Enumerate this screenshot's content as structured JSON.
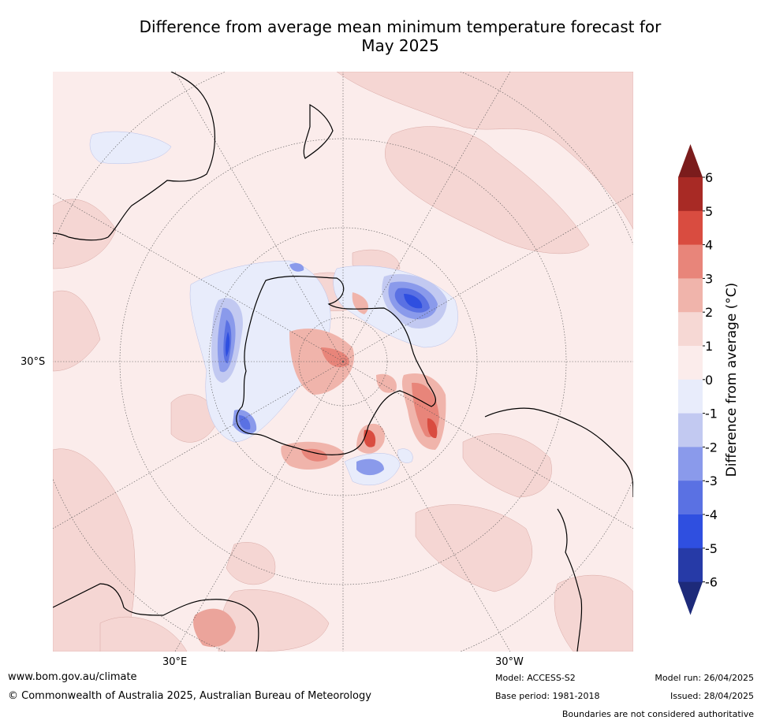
{
  "title_line1": "Difference from average mean minimum temperature forecast for",
  "title_line2": "May 2025",
  "map": {
    "lat_label": "30°S",
    "lon_labels": [
      "30°E",
      "30°W"
    ]
  },
  "colorbar": {
    "label": "Difference from average (°C)",
    "ticks": [
      "6",
      "5",
      "4",
      "3",
      "2",
      "1",
      "0",
      "-1",
      "-2",
      "-3",
      "-4",
      "-5",
      "-6"
    ],
    "colors": [
      "#7b1c1c",
      "#a82a25",
      "#d94c40",
      "#e8857a",
      "#f0b4ab",
      "#f6d8d4",
      "#fbeceb",
      "#e8ecfb",
      "#c2c9f1",
      "#8a9aeb",
      "#5a71e3",
      "#2f4fe0",
      "#263aa7",
      "#1d2a7a"
    ]
  },
  "footer": {
    "url": "www.bom.gov.au/climate",
    "copyright": "© Commonwealth of Australia 2025, Australian Bureau of Meteorology",
    "model": "Model: ACCESS-S2",
    "base_period": "Base period: 1981-2018",
    "model_run": "Model run: 26/04/2025",
    "issued": "Issued: 28/04/2025",
    "disclaimer": "Boundaries are not considered authoritative"
  }
}
